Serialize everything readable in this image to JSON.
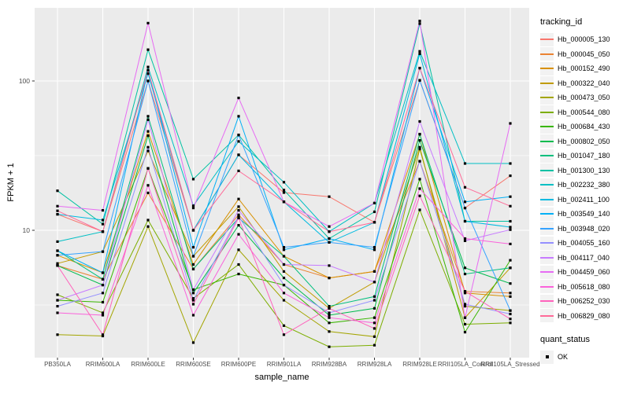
{
  "figure": {
    "y_axis_title": "FPKM + 1",
    "x_axis_title": "sample_name",
    "y_tick_labels": [
      "10",
      "100"
    ],
    "legend": {
      "tracking_title": "tracking_id",
      "quant_title": "quant_status",
      "quant_ok_label": "OK",
      "quant_marker": "black-filled-square"
    },
    "panel_color": "#EBEBEB",
    "gridline_color": "#FFFFFF",
    "tick_text_color": "#4D4D4D"
  },
  "chart_data": {
    "type": "line",
    "title": "",
    "xlabel": "sample_name",
    "ylabel": "FPKM + 1",
    "y_scale": "log10",
    "ylim": [
      1.4,
      310
    ],
    "yticks": [
      10,
      100
    ],
    "yticks_minor": [
      3.162,
      31.62
    ],
    "grid": true,
    "legend_position": "right",
    "point_marker": "filled-square-black",
    "point_legend": {
      "title": "quant_status",
      "label": "OK"
    },
    "categories": [
      "PB350LA",
      "RRIM600LA",
      "RRIM600LE",
      "RRIM600SE",
      "RRIM600PE",
      "RRIM901LA",
      "RRIM928BA",
      "RRIM928LA",
      "RRIM928LE",
      "RRII105LA_Control",
      "RRII105LA_Stressed"
    ],
    "series": [
      {
        "name": "Hb_000005_130",
        "color": "#F8766D",
        "values": [
          12.8,
          9.8,
          100,
          10.0,
          32.0,
          17.9,
          16.8,
          11.3,
          101,
          14.1,
          23.2
        ]
      },
      {
        "name": "Hb_000045_050",
        "color": "#EA8331",
        "values": [
          5.8,
          4.7,
          17.8,
          5.5,
          12.7,
          5.9,
          4.8,
          5.3,
          29.0,
          3.9,
          3.8
        ]
      },
      {
        "name": "Hb_000152_490",
        "color": "#D89000",
        "values": [
          6.8,
          5.2,
          46.0,
          5.9,
          16.2,
          6.7,
          4.8,
          5.3,
          44.0,
          3.8,
          3.6
        ]
      },
      {
        "name": "Hb_000322_040",
        "color": "#C09B00",
        "values": [
          6.0,
          7.2,
          34.0,
          6.7,
          14.4,
          5.3,
          3.0,
          4.5,
          36.0,
          2.6,
          5.6
        ]
      },
      {
        "name": "Hb_000473_050",
        "color": "#A3A500",
        "values": [
          2.0,
          1.96,
          10.6,
          1.77,
          7.4,
          3.4,
          2.1,
          1.94,
          35.0,
          3.1,
          2.9
        ]
      },
      {
        "name": "Hb_000544_080",
        "color": "#7CAE00",
        "values": [
          3.7,
          2.8,
          11.7,
          3.5,
          5.9,
          2.3,
          1.66,
          1.7,
          13.7,
          2.35,
          2.4
        ]
      },
      {
        "name": "Hb_000684_430",
        "color": "#39B600",
        "values": [
          3.4,
          3.3,
          26.0,
          4.0,
          5.1,
          4.3,
          2.4,
          2.6,
          22.0,
          2.08,
          6.3
        ]
      },
      {
        "name": "Hb_000802_050",
        "color": "#00BB4E",
        "values": [
          5.8,
          4.3,
          43.0,
          3.8,
          10.8,
          4.8,
          2.7,
          3.0,
          40.0,
          5.6,
          4.4
        ]
      },
      {
        "name": "Hb_001047_180",
        "color": "#00BF7D",
        "values": [
          7.3,
          4.7,
          58.0,
          5.5,
          12.1,
          6.7,
          3.1,
          3.6,
          44.0,
          5.1,
          5.6
        ]
      },
      {
        "name": "Hb_001300_130",
        "color": "#00C1A3",
        "values": [
          18.4,
          11.0,
          162,
          22.0,
          43.5,
          18.6,
          8.8,
          13.3,
          242,
          11.5,
          11.5
        ]
      },
      {
        "name": "Hb_002232_380",
        "color": "#00BFC4",
        "values": [
          8.4,
          9.8,
          124,
          14.6,
          39.4,
          21.0,
          9.8,
          15.2,
          158,
          28.0,
          28.0
        ]
      },
      {
        "name": "Hb_002411_100",
        "color": "#00BAE0",
        "values": [
          12.8,
          11.7,
          112,
          10.0,
          32.0,
          15.5,
          8.3,
          11.3,
          152,
          11.5,
          10.5
        ]
      },
      {
        "name": "Hb_003549_140",
        "color": "#00B0F6",
        "values": [
          7.3,
          5.2,
          118,
          7.7,
          58.0,
          7.4,
          8.8,
          7.4,
          122,
          15.5,
          16.8
        ]
      },
      {
        "name": "Hb_003948_020",
        "color": "#35A2FF",
        "values": [
          6.8,
          7.2,
          100,
          6.7,
          43.5,
          7.7,
          8.3,
          7.7,
          101,
          14.1,
          2.9
        ]
      },
      {
        "name": "Hb_004055_160",
        "color": "#9590FF",
        "values": [
          3.1,
          3.8,
          36.0,
          3.4,
          12.4,
          4.3,
          2.8,
          3.4,
          29.0,
          3.2,
          2.75
        ]
      },
      {
        "name": "Hb_004117_040",
        "color": "#C77CFF",
        "values": [
          3.4,
          4.3,
          55.0,
          4.0,
          13.6,
          5.9,
          5.8,
          4.5,
          53.6,
          8.5,
          10.1
        ]
      },
      {
        "name": "Hb_004459_060",
        "color": "#E76BF3",
        "values": [
          14.5,
          13.6,
          244,
          14.1,
          77.0,
          15.5,
          10.6,
          15.2,
          252,
          2.6,
          52.0
        ]
      },
      {
        "name": "Hb_005618_080",
        "color": "#FA62DB",
        "values": [
          2.8,
          2.7,
          20.0,
          2.7,
          9.4,
          3.8,
          2.6,
          2.4,
          19.0,
          8.8,
          8.1
        ]
      },
      {
        "name": "Hb_006252_030",
        "color": "#FF62BC",
        "values": [
          5.8,
          2.0,
          26.0,
          3.2,
          12.1,
          2.0,
          3.0,
          2.2,
          17.0,
          3.9,
          2.55
        ]
      },
      {
        "name": "Hb_006829_080",
        "color": "#FF6A98",
        "values": [
          13.5,
          9.8,
          118,
          10.0,
          25.0,
          15.5,
          9.8,
          11.3,
          122,
          19.4,
          14.5
        ]
      }
    ]
  }
}
